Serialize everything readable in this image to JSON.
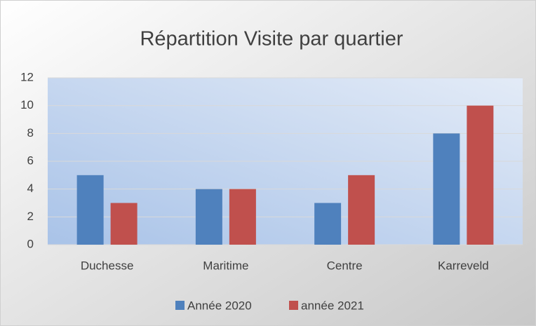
{
  "chart_data": {
    "type": "bar",
    "title": "Répartition Visite par quartier",
    "categories": [
      "Duchesse",
      "Maritime",
      "Centre",
      "Karreveld"
    ],
    "series": [
      {
        "name": "Année 2020",
        "color": "#4f81bd",
        "values": [
          5,
          4,
          3,
          8
        ]
      },
      {
        "name": "année 2021",
        "color": "#c0504d",
        "values": [
          3,
          4,
          5,
          10
        ]
      }
    ],
    "ylim": [
      0,
      12
    ],
    "yticks": [
      0,
      2,
      4,
      6,
      8,
      10,
      12
    ],
    "grid": true,
    "legend": "bottom"
  }
}
